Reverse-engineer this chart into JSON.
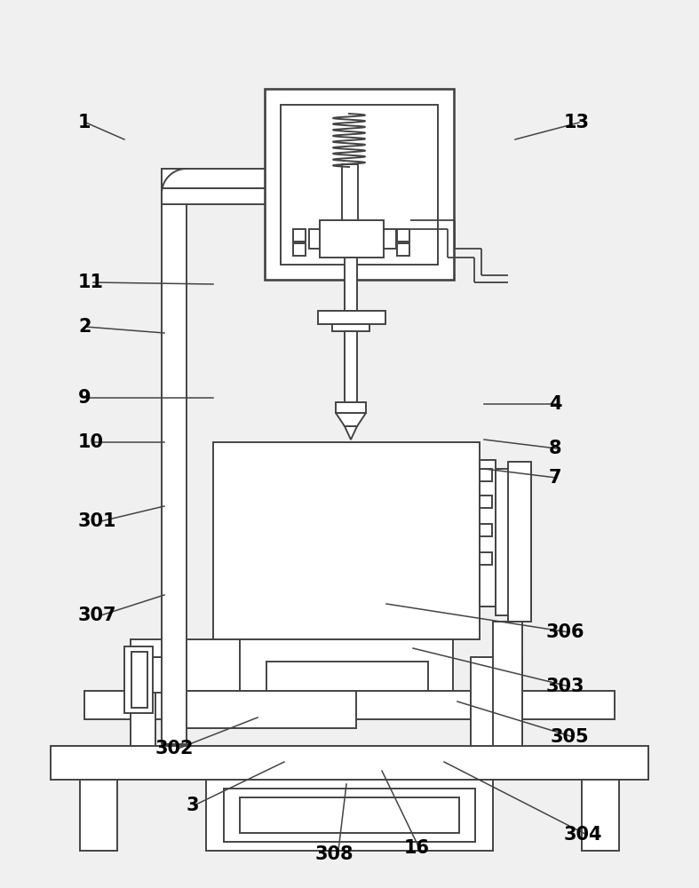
{
  "bg_color": "#f0f0f0",
  "line_color": "#444444",
  "line_width": 1.4,
  "label_fontsize": 15,
  "label_fontweight": "bold",
  "labels_data": [
    [
      "308",
      355,
      962,
      390,
      883
    ],
    [
      "16",
      455,
      955,
      430,
      868
    ],
    [
      "3",
      210,
      907,
      320,
      858
    ],
    [
      "304",
      635,
      940,
      500,
      858
    ],
    [
      "302",
      175,
      843,
      290,
      808
    ],
    [
      "305",
      620,
      830,
      515,
      790
    ],
    [
      "303",
      615,
      773,
      465,
      730
    ],
    [
      "307",
      88,
      693,
      185,
      670
    ],
    [
      "306",
      615,
      712,
      435,
      680
    ],
    [
      "301",
      88,
      587,
      185,
      570
    ],
    [
      "7",
      618,
      538,
      545,
      528
    ],
    [
      "8",
      618,
      505,
      545,
      495
    ],
    [
      "10",
      88,
      498,
      185,
      498
    ],
    [
      "9",
      88,
      448,
      240,
      448
    ],
    [
      "4",
      618,
      455,
      545,
      455
    ],
    [
      "2",
      88,
      368,
      185,
      375
    ],
    [
      "11",
      88,
      318,
      240,
      320
    ],
    [
      "1",
      88,
      138,
      140,
      157
    ],
    [
      "13",
      635,
      138,
      580,
      157
    ]
  ]
}
